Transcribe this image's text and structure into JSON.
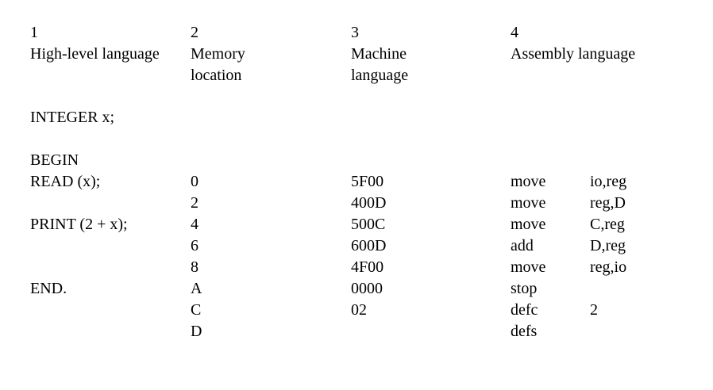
{
  "columns": [
    {
      "number": "1",
      "title": [
        "High-level language"
      ]
    },
    {
      "number": "2",
      "title": [
        "Memory",
        "location"
      ]
    },
    {
      "number": "3",
      "title": [
        "Machine",
        "language"
      ]
    },
    {
      "number": "4",
      "title": [
        "Assembly language"
      ]
    }
  ],
  "high_level": {
    "declaration": "INTEGER x;",
    "begin": "BEGIN",
    "read": "READ (x);",
    "print": "PRINT (2 + x);",
    "end": "END."
  },
  "rows": [
    {
      "location": "0",
      "machine": "5F00",
      "op": "move",
      "operand": "io,reg"
    },
    {
      "location": "2",
      "machine": "400D",
      "op": "move",
      "operand": "reg,D"
    },
    {
      "location": "4",
      "machine": "500C",
      "op": "move",
      "operand": "C,reg"
    },
    {
      "location": "6",
      "machine": "600D",
      "op": "add",
      "operand": "D,reg"
    },
    {
      "location": "8",
      "machine": "4F00",
      "op": "move",
      "operand": "reg,io"
    },
    {
      "location": "A",
      "machine": "0000",
      "op": "stop",
      "operand": ""
    },
    {
      "location": "C",
      "machine": "02",
      "op": "defc",
      "operand": "2"
    },
    {
      "location": "D",
      "machine": "",
      "op": "defs",
      "operand": ""
    }
  ]
}
